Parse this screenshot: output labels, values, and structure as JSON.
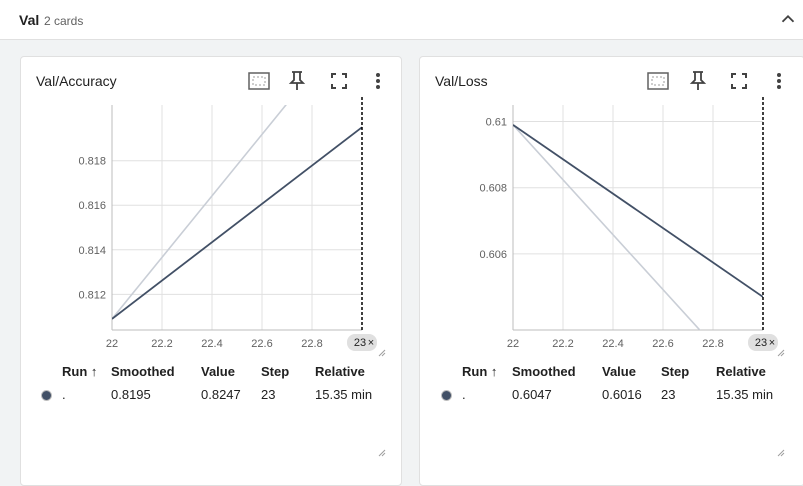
{
  "group": {
    "title": "Val",
    "count": "2 cards"
  },
  "colors": {
    "smoothed": "#425066",
    "raw": "#c9ced6",
    "grid": "#e0e0e0"
  },
  "icons": {
    "collapse": "chevron-up-icon",
    "fit": "fit-domain-icon",
    "pin": "pin-icon",
    "fullscreen": "fullscreen-icon",
    "menu": "more-vert-icon"
  },
  "cards": [
    {
      "title": "Val/Accuracy",
      "chart_data": {
        "type": "line",
        "xlim": [
          22,
          23
        ],
        "ylim": [
          0.8104,
          0.8205
        ],
        "x_ticks": [
          "22",
          "22.2",
          "22.4",
          "22.6",
          "22.8"
        ],
        "y_ticks": [
          "0.812",
          "0.814",
          "0.816",
          "0.818"
        ],
        "series": [
          {
            "kind": "smoothed",
            "x": [
              22,
              23
            ],
            "y": [
              0.8109,
              0.8195
            ]
          },
          {
            "kind": "raw",
            "x": [
              22,
              23
            ],
            "y": [
              0.8109,
              0.8247
            ]
          }
        ],
        "cursor_step": "23"
      },
      "legend": {
        "headers": {
          "run": "Run ↑",
          "smoothed": "Smoothed",
          "value": "Value",
          "step": "Step",
          "relative": "Relative"
        },
        "row": {
          "run": ".",
          "smoothed": "0.8195",
          "value": "0.8247",
          "step": "23",
          "relative": "15.35 min"
        }
      }
    },
    {
      "title": "Val/Loss",
      "chart_data": {
        "type": "line",
        "xlim": [
          22,
          23
        ],
        "ylim": [
          0.6037,
          0.6105
        ],
        "x_ticks": [
          "22",
          "22.2",
          "22.4",
          "22.6",
          "22.8"
        ],
        "y_ticks": [
          "0.606",
          "0.608",
          "0.61"
        ],
        "series": [
          {
            "kind": "smoothed",
            "x": [
              22,
              23
            ],
            "y": [
              0.6099,
              0.6047
            ]
          },
          {
            "kind": "raw",
            "x": [
              22,
              23
            ],
            "y": [
              0.6099,
              0.6016
            ]
          }
        ],
        "cursor_step": "23"
      },
      "legend": {
        "headers": {
          "run": "Run ↑",
          "smoothed": "Smoothed",
          "value": "Value",
          "step": "Step",
          "relative": "Relative"
        },
        "row": {
          "run": ".",
          "smoothed": "0.6047",
          "value": "0.6016",
          "step": "23",
          "relative": "15.35 min"
        }
      }
    }
  ]
}
